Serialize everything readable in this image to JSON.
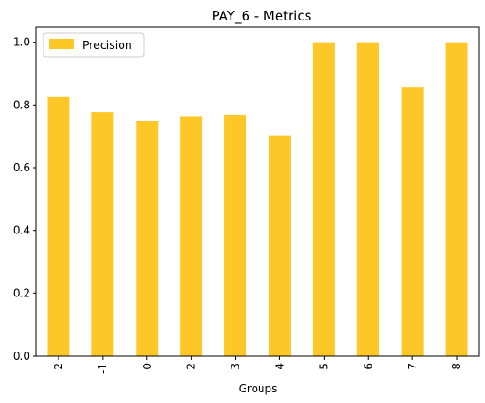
{
  "chart_data": {
    "type": "bar",
    "title": "PAY_6 - Metrics",
    "xlabel": "Groups",
    "ylabel": "",
    "categories": [
      "-2",
      "-1",
      "0",
      "2",
      "3",
      "4",
      "5",
      "6",
      "7",
      "8"
    ],
    "series": [
      {
        "name": "Precision",
        "color": "#fdc727",
        "values": [
          0.827,
          0.778,
          0.75,
          0.763,
          0.767,
          0.703,
          1.0,
          1.0,
          0.857,
          1.0
        ]
      }
    ],
    "ylim": [
      0,
      1.05
    ],
    "yticks": [
      "0.0",
      "0.2",
      "0.4",
      "0.6",
      "0.8",
      "1.0"
    ],
    "grid": false,
    "legend_position": "top-left"
  }
}
